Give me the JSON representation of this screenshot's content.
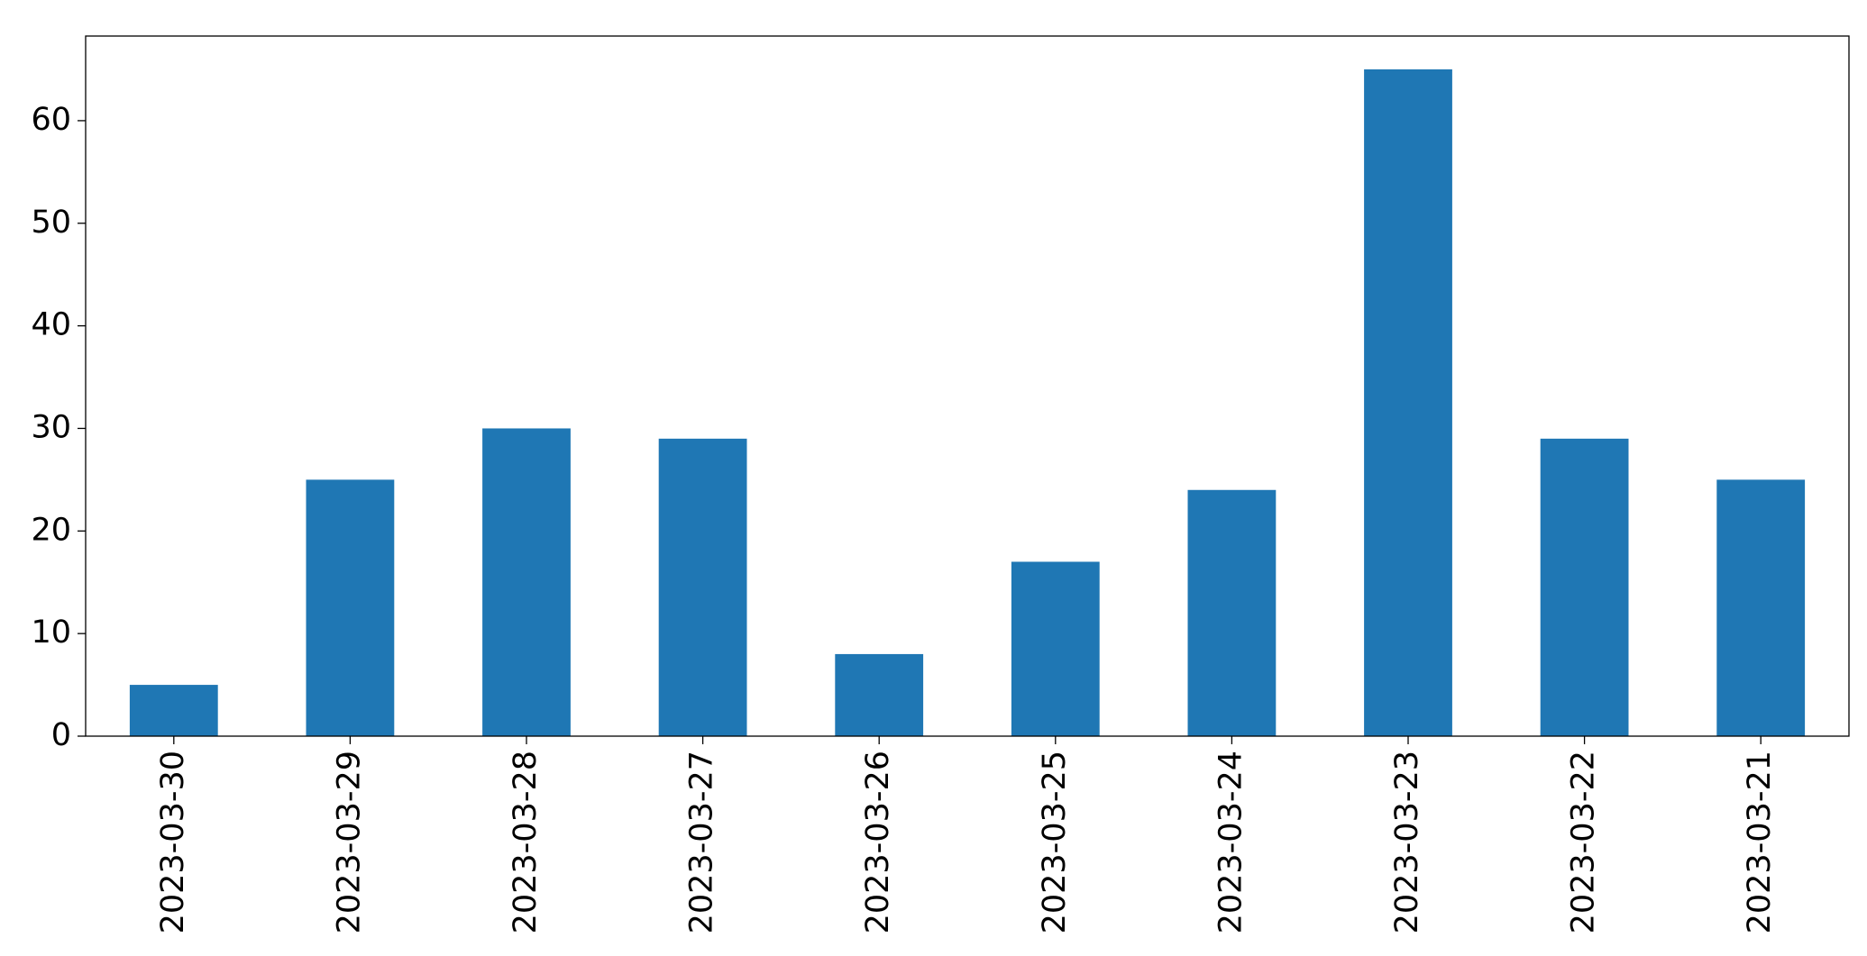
{
  "chart_data": {
    "type": "bar",
    "categories": [
      "2023-03-30",
      "2023-03-29",
      "2023-03-28",
      "2023-03-27",
      "2023-03-26",
      "2023-03-25",
      "2023-03-24",
      "2023-03-23",
      "2023-03-22",
      "2023-03-21"
    ],
    "values": [
      5,
      25,
      30,
      29,
      8,
      17,
      24,
      65,
      29,
      25
    ],
    "color": "#1f77b4",
    "ylim": [
      0,
      68.25
    ],
    "yticks": [
      0,
      10,
      20,
      30,
      40,
      50,
      60
    ],
    "grid": false
  }
}
